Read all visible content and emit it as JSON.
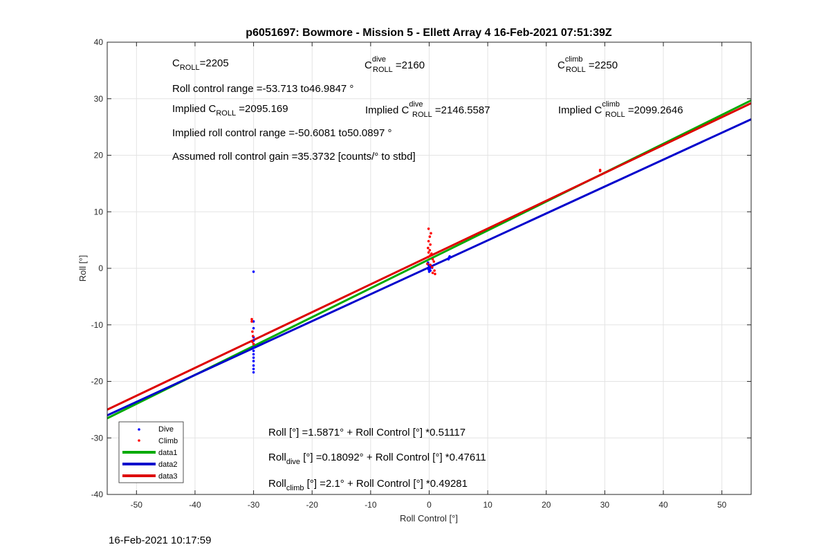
{
  "chart_data": {
    "type": "scatter",
    "title": "p6051697: Bowmore - Mission 5 - Ellett Array 4 16-Feb-2021 07:51:39Z",
    "xlabel": "Roll Control [°]",
    "ylabel": "Roll [°]",
    "xlim": [
      -55,
      55
    ],
    "ylim": [
      -40,
      40
    ],
    "xticks": [
      -50,
      -40,
      -30,
      -20,
      -10,
      0,
      10,
      20,
      30,
      40,
      50
    ],
    "yticks": [
      -40,
      -30,
      -20,
      -10,
      0,
      10,
      20,
      30,
      40
    ],
    "grid": true,
    "legend_position": "bottom-left",
    "series": [
      {
        "name": "Dive",
        "kind": "points",
        "color": "#0000ff",
        "points": [
          [
            -30,
            -0.6
          ],
          [
            -30,
            -9.4
          ],
          [
            -30,
            -10.6
          ],
          [
            -30,
            -12.2
          ],
          [
            -30,
            -12.8
          ],
          [
            -30,
            -13.4
          ],
          [
            -30,
            -14.0
          ],
          [
            -30,
            -14.6
          ],
          [
            -30,
            -15.2
          ],
          [
            -30,
            -15.8
          ],
          [
            -30,
            -16.4
          ],
          [
            -30,
            -17.2
          ],
          [
            -30,
            -17.8
          ],
          [
            -30,
            -18.4
          ],
          [
            -0.2,
            1.0
          ],
          [
            -0.1,
            0.6
          ],
          [
            0,
            0.4
          ],
          [
            0,
            0.2
          ],
          [
            0.1,
            0
          ],
          [
            -0.1,
            -0.2
          ],
          [
            0.2,
            -0.4
          ],
          [
            0,
            -0.6
          ],
          [
            -0.3,
            0.8
          ],
          [
            0.3,
            0.3
          ],
          [
            0.5,
            0.1
          ],
          [
            3.3,
            1.6
          ],
          [
            3.4,
            1.9
          ],
          [
            3.5,
            2.1
          ]
        ]
      },
      {
        "name": "Climb",
        "kind": "points",
        "color": "#ff0000",
        "points": [
          [
            -30.3,
            -9.0
          ],
          [
            -30.3,
            -9.4
          ],
          [
            -30.2,
            -11.2
          ],
          [
            -30.1,
            -12.0
          ],
          [
            -30.2,
            -13.0
          ],
          [
            -30.0,
            -13.4
          ],
          [
            -0.1,
            7.0
          ],
          [
            0.3,
            6.2
          ],
          [
            0.1,
            5.6
          ],
          [
            -0.1,
            4.8
          ],
          [
            0.2,
            4.2
          ],
          [
            -0.2,
            3.6
          ],
          [
            0.1,
            3.2
          ],
          [
            -0.1,
            2.8
          ],
          [
            0.4,
            2.6
          ],
          [
            0.2,
            2.3
          ],
          [
            -0.2,
            2.0
          ],
          [
            0.6,
            1.6
          ],
          [
            0.8,
            1.2
          ],
          [
            -0.3,
            0.8
          ],
          [
            0.2,
            0.6
          ],
          [
            0.5,
            0.2
          ],
          [
            0.9,
            -0.4
          ],
          [
            0.6,
            -0.8
          ],
          [
            1.0,
            -1.0
          ],
          [
            29.2,
            17.2
          ],
          [
            29.2,
            17.4
          ]
        ]
      },
      {
        "name": "data1",
        "kind": "line",
        "color": "#00aa00",
        "intercept": 1.5871,
        "slope": 0.51117
      },
      {
        "name": "data2",
        "kind": "line",
        "color": "#0000cc",
        "intercept": 0.18092,
        "slope": 0.47611
      },
      {
        "name": "data3",
        "kind": "line",
        "color": "#dd0000",
        "intercept": 2.1,
        "slope": 0.49281
      }
    ],
    "annotations": {
      "c_roll": {
        "base": "C",
        "sub": "ROLL",
        "value": "=2205"
      },
      "c_dive": {
        "base": "C",
        "sup": "dive",
        "sub": "ROLL",
        "value": " =2160"
      },
      "c_climb": {
        "base": "C",
        "sup": "climb",
        "sub": "ROLL",
        "value": " =2250"
      },
      "roll_control_range": "Roll control range =-53.713 to46.9847 °",
      "implied_c_roll": {
        "prefix": "Implied C",
        "sub": "ROLL",
        "value": " =2095.169"
      },
      "implied_c_dive": {
        "prefix": "Implied C",
        "sup": "dive",
        "sub": "ROLL",
        "value": " =2146.5587"
      },
      "implied_c_climb": {
        "prefix": "Implied C",
        "sup": "climb",
        "sub": "ROLL",
        "value": " =2099.2646"
      },
      "implied_range": "Implied roll control range =-50.6081 to50.0897 °",
      "gain": "Assumed roll control gain =35.3732 [counts/° to stbd]",
      "fit_all": "Roll [°] =1.5871° + Roll Control [°] *0.51117",
      "fit_dive": {
        "base": "Roll",
        "sub": "dive",
        "rest": " [°] =0.18092° + Roll Control [°] *0.47611"
      },
      "fit_climb": {
        "base": "Roll",
        "sub": "climb",
        "rest": " [°] =2.1° + Roll Control [°] *0.49281"
      }
    }
  },
  "footer": {
    "timestamp": "16-Feb-2021 10:17:59"
  }
}
